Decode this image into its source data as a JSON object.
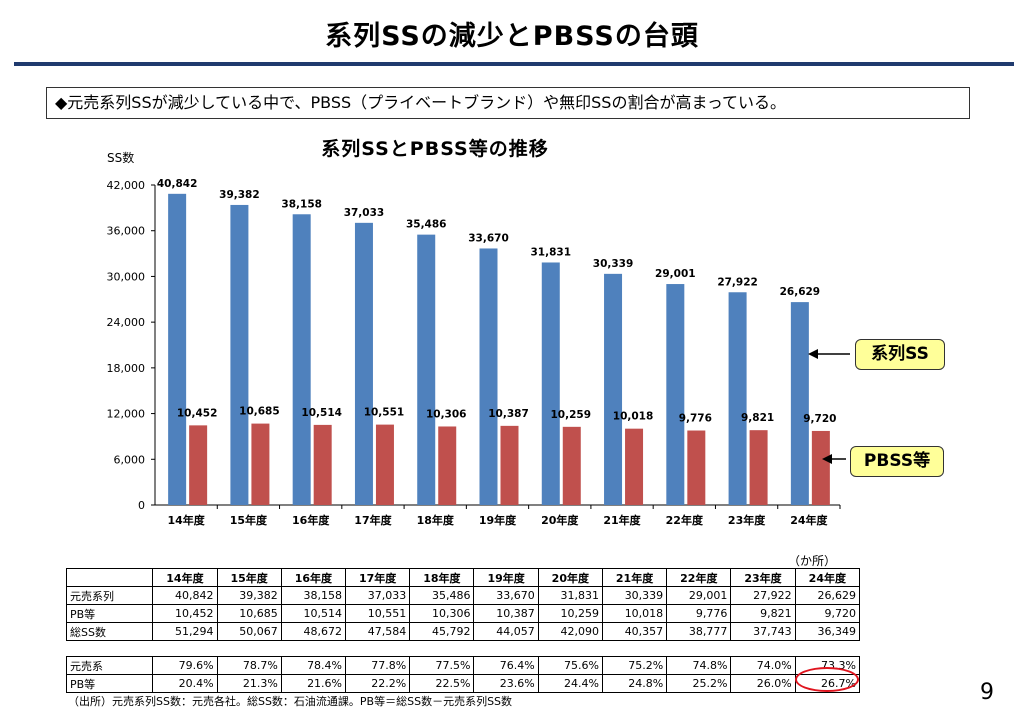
{
  "slide": {
    "title": "系列SSの減少とPBSSの台頭",
    "lead": "◆元売系列SSが減少している中で、PBSS（プライベートブランド）や無印SSの割合が高まっている。",
    "page_number": "9",
    "source": "（出所）元売系列SS数：元売各社。総SS数：石油流通課。PB等＝総SS数－元売系列SS数"
  },
  "chart_data": {
    "type": "bar",
    "title": "系列SSとPBSS等の推移",
    "ylabel": "SS数",
    "xlabel": "",
    "categories": [
      "14年度",
      "15年度",
      "16年度",
      "17年度",
      "18年度",
      "19年度",
      "20年度",
      "21年度",
      "22年度",
      "23年度",
      "24年度"
    ],
    "series": [
      {
        "name": "系列SS",
        "color": "#4f81bd",
        "values": [
          40842,
          39382,
          38158,
          37033,
          35486,
          33670,
          31831,
          30339,
          29001,
          27922,
          26629
        ],
        "labels": [
          "40,842",
          "39,382",
          "38,158",
          "37,033",
          "35,486",
          "33,670",
          "31,831",
          "30,339",
          "29,001",
          "27,922",
          "26,629"
        ]
      },
      {
        "name": "PBSS等",
        "color": "#c0504d",
        "values": [
          10452,
          10685,
          10514,
          10551,
          10306,
          10387,
          10259,
          10018,
          9776,
          9821,
          9720
        ],
        "labels": [
          "10,452",
          "10,685",
          "10,514",
          "10,551",
          "10,306",
          "10,387",
          "10,259",
          "10,018",
          "9,776",
          "9,821",
          "9,720"
        ]
      }
    ],
    "ylim": [
      0,
      42000
    ],
    "yticks": [
      0,
      6000,
      12000,
      18000,
      24000,
      30000,
      36000,
      42000
    ],
    "ytick_labels": [
      "0",
      "6,000",
      "12,000",
      "18,000",
      "24,000",
      "30,000",
      "36,000",
      "42,000"
    ],
    "grid": false
  },
  "callouts": {
    "series": "系列SS",
    "pb": "PBSS等"
  },
  "table": {
    "unit": "（か所）",
    "headers": [
      "14年度",
      "15年度",
      "16年度",
      "17年度",
      "18年度",
      "19年度",
      "20年度",
      "21年度",
      "22年度",
      "23年度",
      "24年度"
    ],
    "rows": [
      {
        "label": "元売系列",
        "values": [
          "40,842",
          "39,382",
          "38,158",
          "37,033",
          "35,486",
          "33,670",
          "31,831",
          "30,339",
          "29,001",
          "27,922",
          "26,629"
        ]
      },
      {
        "label": "PB等",
        "values": [
          "10,452",
          "10,685",
          "10,514",
          "10,551",
          "10,306",
          "10,387",
          "10,259",
          "10,018",
          "9,776",
          "9,821",
          "9,720"
        ]
      },
      {
        "label": "総SS数",
        "values": [
          "51,294",
          "50,067",
          "48,672",
          "47,584",
          "45,792",
          "44,057",
          "42,090",
          "40,357",
          "38,777",
          "37,743",
          "36,349"
        ]
      }
    ],
    "share_rows": [
      {
        "label": "元売系",
        "values": [
          "79.6%",
          "78.7%",
          "78.4%",
          "77.8%",
          "77.5%",
          "76.4%",
          "75.6%",
          "75.2%",
          "74.8%",
          "74.0%",
          "73.3%"
        ]
      },
      {
        "label": "PB等",
        "values": [
          "20.4%",
          "21.3%",
          "21.6%",
          "22.2%",
          "22.5%",
          "23.6%",
          "24.4%",
          "24.8%",
          "25.2%",
          "26.0%",
          "26.7%"
        ]
      }
    ]
  }
}
